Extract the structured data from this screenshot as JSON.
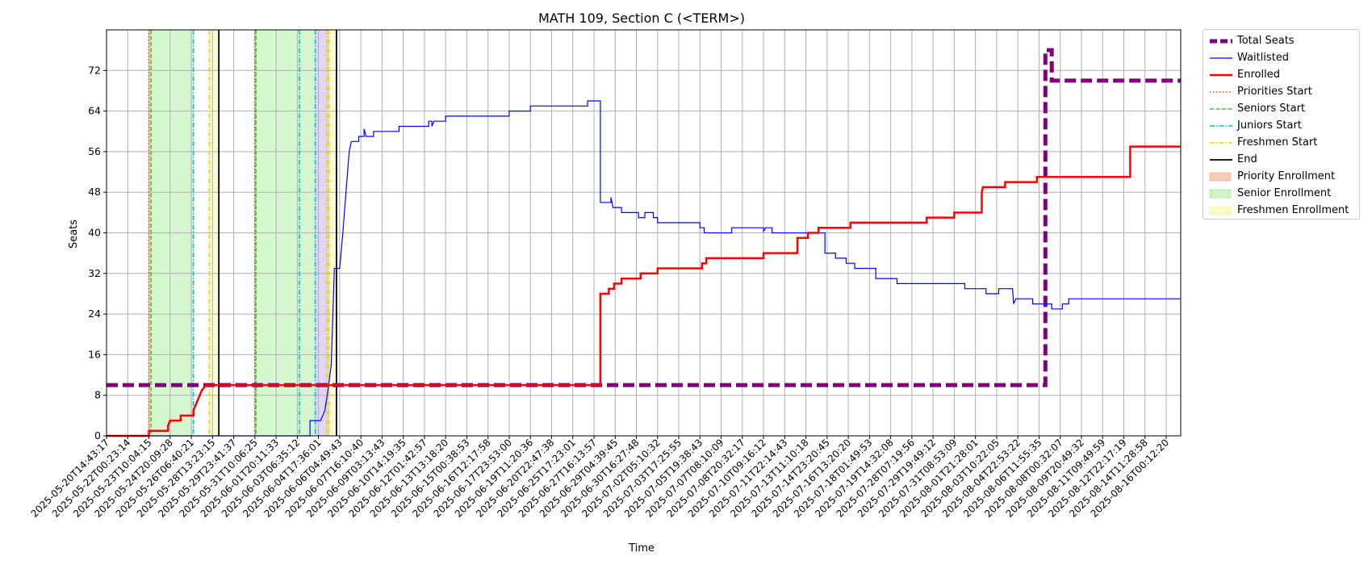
{
  "chart_data": {
    "type": "line",
    "title": "MATH 109, Section C (<TERM>)",
    "xlabel": "Time",
    "ylabel": "Seats",
    "ylim": [
      0,
      80
    ],
    "yticks": [
      0,
      8,
      16,
      24,
      32,
      40,
      48,
      56,
      64,
      72
    ],
    "grid": true,
    "legend_position": "outside-upper-right",
    "x_range": [
      "2025-05-20T14:43:17",
      "2025-08-17T01:00:00"
    ],
    "xtick_labels": [
      "2025-05-20T14:43:17",
      "2025-05-22T00:23:14",
      "2025-05-23T10:04:15",
      "2025-05-24T20:09:28",
      "2025-05-26T06:40:21",
      "2025-05-28T13:23:15",
      "2025-05-29T23:41:37",
      "2025-05-31T10:06:25",
      "2025-06-01T20:11:33",
      "2025-06-03T06:35:12",
      "2025-06-04T17:36:01",
      "2025-06-06T04:49:43",
      "2025-06-07T16:10:40",
      "2025-06-09T03:13:43",
      "2025-06-10T14:19:35",
      "2025-06-12T01:42:57",
      "2025-06-13T13:18:20",
      "2025-06-15T00:38:53",
      "2025-06-16T12:17:58",
      "2025-06-17T23:53:00",
      "2025-06-19T11:20:36",
      "2025-06-20T22:47:38",
      "2025-06-25T17:23:01",
      "2025-06-27T16:13:57",
      "2025-06-29T04:39:45",
      "2025-06-30T16:27:48",
      "2025-07-02T05:10:32",
      "2025-07-03T17:25:55",
      "2025-07-05T19:38:43",
      "2025-07-07T08:10:09",
      "2025-07-08T20:32:17",
      "2025-07-10T09:16:12",
      "2025-07-11T22:14:43",
      "2025-07-13T11:10:18",
      "2025-07-14T23:20:45",
      "2025-07-16T13:20:20",
      "2025-07-18T01:49:53",
      "2025-07-19T14:32:08",
      "2025-07-28T07:19:56",
      "2025-07-29T19:49:12",
      "2025-07-31T08:53:09",
      "2025-08-01T21:28:01",
      "2025-08-03T10:22:05",
      "2025-08-04T22:53:22",
      "2025-08-06T11:55:35",
      "2025-08-08T00:32:07",
      "2025-08-09T20:49:32",
      "2025-08-11T09:49:59",
      "2025-08-12T22:17:19",
      "2025-08-14T11:28:58",
      "2025-08-16T00:12:20"
    ],
    "series": [
      {
        "name": "Total Seats",
        "color": "#800080",
        "style": "dashed",
        "points": [
          [
            0,
            10
          ],
          [
            44.3,
            10
          ],
          [
            44.3,
            76
          ],
          [
            44.6,
            76
          ],
          [
            44.6,
            70
          ],
          [
            51,
            70
          ]
        ]
      },
      {
        "name": "Waitlisted",
        "color": "#0000ff",
        "style": "solid",
        "points": [
          [
            0,
            0
          ],
          [
            9.6,
            0
          ],
          [
            9.6,
            3
          ],
          [
            10.1,
            3
          ],
          [
            10.3,
            5
          ],
          [
            10.45,
            9
          ],
          [
            10.6,
            14
          ],
          [
            10.75,
            33
          ],
          [
            11.0,
            33
          ],
          [
            11.15,
            40
          ],
          [
            11.3,
            48
          ],
          [
            11.45,
            56
          ],
          [
            11.55,
            58
          ],
          [
            11.9,
            58
          ],
          [
            11.9,
            59
          ],
          [
            12.15,
            59
          ],
          [
            12.15,
            60.5
          ],
          [
            12.25,
            59
          ],
          [
            12.6,
            59
          ],
          [
            12.6,
            60
          ],
          [
            13.8,
            60
          ],
          [
            13.8,
            61
          ],
          [
            15.2,
            61
          ],
          [
            15.2,
            62
          ],
          [
            15.35,
            62
          ],
          [
            15.35,
            61
          ],
          [
            15.45,
            62
          ],
          [
            16.0,
            62
          ],
          [
            16.0,
            63
          ],
          [
            19.0,
            63
          ],
          [
            19.0,
            64
          ],
          [
            20.0,
            64
          ],
          [
            20.0,
            65
          ],
          [
            22.7,
            65
          ],
          [
            22.7,
            66
          ],
          [
            23.3,
            66
          ],
          [
            23.3,
            46
          ],
          [
            23.8,
            46
          ],
          [
            23.8,
            47
          ],
          [
            23.9,
            45
          ],
          [
            24.3,
            45
          ],
          [
            24.3,
            44
          ],
          [
            25.1,
            44
          ],
          [
            25.1,
            43
          ],
          [
            25.4,
            43
          ],
          [
            25.4,
            44
          ],
          [
            25.8,
            44
          ],
          [
            25.8,
            43
          ],
          [
            26.0,
            43
          ],
          [
            26.0,
            42
          ],
          [
            28.0,
            42
          ],
          [
            28.0,
            41
          ],
          [
            28.2,
            41
          ],
          [
            28.2,
            40
          ],
          [
            29.5,
            40
          ],
          [
            29.5,
            41
          ],
          [
            31.0,
            41
          ],
          [
            31.0,
            40.3
          ],
          [
            31.1,
            41
          ],
          [
            31.4,
            41
          ],
          [
            31.4,
            40
          ],
          [
            33.9,
            40
          ],
          [
            33.9,
            36
          ],
          [
            34.4,
            36
          ],
          [
            34.4,
            35
          ],
          [
            34.9,
            35
          ],
          [
            34.9,
            34
          ],
          [
            35.3,
            34
          ],
          [
            35.3,
            33
          ],
          [
            36.3,
            33
          ],
          [
            36.3,
            31
          ],
          [
            37.3,
            31
          ],
          [
            37.3,
            30
          ],
          [
            40.5,
            30
          ],
          [
            40.5,
            29
          ],
          [
            41.5,
            29
          ],
          [
            41.5,
            28
          ],
          [
            42.1,
            28
          ],
          [
            42.1,
            29
          ],
          [
            42.75,
            29
          ],
          [
            42.8,
            26
          ],
          [
            42.9,
            27
          ],
          [
            43.7,
            27
          ],
          [
            43.7,
            26
          ],
          [
            44.6,
            26
          ],
          [
            44.6,
            25
          ],
          [
            45.1,
            25
          ],
          [
            45.1,
            26
          ],
          [
            45.4,
            26
          ],
          [
            45.4,
            27
          ],
          [
            51,
            27
          ]
        ]
      },
      {
        "name": "Enrolled",
        "color": "#ff0000",
        "style": "solid",
        "points": [
          [
            0,
            0
          ],
          [
            2.0,
            0
          ],
          [
            2.0,
            1
          ],
          [
            2.9,
            1
          ],
          [
            2.9,
            2
          ],
          [
            3.0,
            3
          ],
          [
            3.5,
            3
          ],
          [
            3.5,
            4
          ],
          [
            4.1,
            4
          ],
          [
            4.1,
            5
          ],
          [
            4.3,
            7
          ],
          [
            4.5,
            9
          ],
          [
            4.7,
            10
          ],
          [
            23.3,
            10
          ],
          [
            23.3,
            28
          ],
          [
            23.7,
            28
          ],
          [
            23.7,
            29
          ],
          [
            23.95,
            29
          ],
          [
            23.95,
            30
          ],
          [
            24.3,
            30
          ],
          [
            24.3,
            31
          ],
          [
            25.2,
            31
          ],
          [
            25.2,
            32
          ],
          [
            26.0,
            32
          ],
          [
            26.0,
            33
          ],
          [
            28.1,
            33
          ],
          [
            28.1,
            34
          ],
          [
            28.3,
            34
          ],
          [
            28.3,
            35
          ],
          [
            31.0,
            35
          ],
          [
            31.0,
            36
          ],
          [
            32.6,
            36
          ],
          [
            32.6,
            39
          ],
          [
            33.1,
            39
          ],
          [
            33.1,
            40
          ],
          [
            33.6,
            40
          ],
          [
            33.6,
            41
          ],
          [
            35.1,
            41
          ],
          [
            35.1,
            42
          ],
          [
            38.7,
            42
          ],
          [
            38.7,
            43
          ],
          [
            40.0,
            43
          ],
          [
            40.0,
            44
          ],
          [
            41.3,
            44
          ],
          [
            41.3,
            48
          ],
          [
            41.35,
            49
          ],
          [
            42.4,
            49
          ],
          [
            42.4,
            50
          ],
          [
            43.9,
            50
          ],
          [
            43.9,
            51
          ],
          [
            48.3,
            51
          ],
          [
            48.3,
            57
          ],
          [
            51,
            57
          ]
        ]
      }
    ],
    "vertical_markers": [
      {
        "name": "Priorities Start",
        "color": "#ff4500",
        "style": "dotted",
        "x": [
          2.0,
          7.0
        ]
      },
      {
        "name": "Seniors Start",
        "color": "#32cd32",
        "style": "dashed",
        "x": [
          2.1,
          7.05
        ]
      },
      {
        "name": "Juniors Start",
        "color": "#00bcd4",
        "style": "dashdot",
        "x": [
          4.1,
          9.1,
          9.85
        ]
      },
      {
        "name": "Freshmen Start",
        "color": "#e5d400",
        "style": "dashdot",
        "x": [
          4.85,
          10.4,
          10.5
        ]
      },
      {
        "name": "End",
        "color": "#000000",
        "style": "solid",
        "x": [
          5.3,
          10.85
        ]
      }
    ],
    "shaded_regions": [
      {
        "name": "Priority Enrollment",
        "color": "#f4b7a0",
        "spans": [
          [
            2.0,
            2.1
          ],
          [
            7.0,
            7.05
          ]
        ]
      },
      {
        "name": "Senior Enrollment",
        "color": "#b3f0a8",
        "spans": [
          [
            2.1,
            4.1
          ],
          [
            7.05,
            9.85
          ]
        ]
      },
      {
        "name": "Freshmen Enrollment",
        "color": "#f5f5b0",
        "spans": [
          [
            4.85,
            5.3
          ],
          [
            10.5,
            10.85
          ]
        ]
      },
      {
        "name": "Junior Enrollment",
        "color": "#c8b4f0",
        "spans": [
          [
            9.85,
            10.5
          ]
        ]
      }
    ],
    "legend": [
      {
        "label": "Total Seats",
        "kind": "line",
        "color": "#800080",
        "style": "dashed-thick"
      },
      {
        "label": "Waitlisted",
        "kind": "line",
        "color": "#0000ff",
        "style": "solid-thin"
      },
      {
        "label": "Enrolled",
        "kind": "line",
        "color": "#ff0000",
        "style": "solid"
      },
      {
        "label": "Priorities Start",
        "kind": "line",
        "color": "#ff4500",
        "style": "dotted"
      },
      {
        "label": "Seniors Start",
        "kind": "line",
        "color": "#32cd32",
        "style": "dashed"
      },
      {
        "label": "Juniors Start",
        "kind": "line",
        "color": "#00bcd4",
        "style": "dashdot"
      },
      {
        "label": "Freshmen Start",
        "kind": "line",
        "color": "#e5d400",
        "style": "dashdot"
      },
      {
        "label": "End",
        "kind": "line",
        "color": "#000000",
        "style": "solid"
      },
      {
        "label": "Priority Enrollment",
        "kind": "patch",
        "color": "#f4b7a0"
      },
      {
        "label": "Senior Enrollment",
        "kind": "patch",
        "color": "#b3f0a8"
      },
      {
        "label": "Freshmen Enrollment",
        "kind": "patch",
        "color": "#f5f5b0"
      }
    ]
  }
}
